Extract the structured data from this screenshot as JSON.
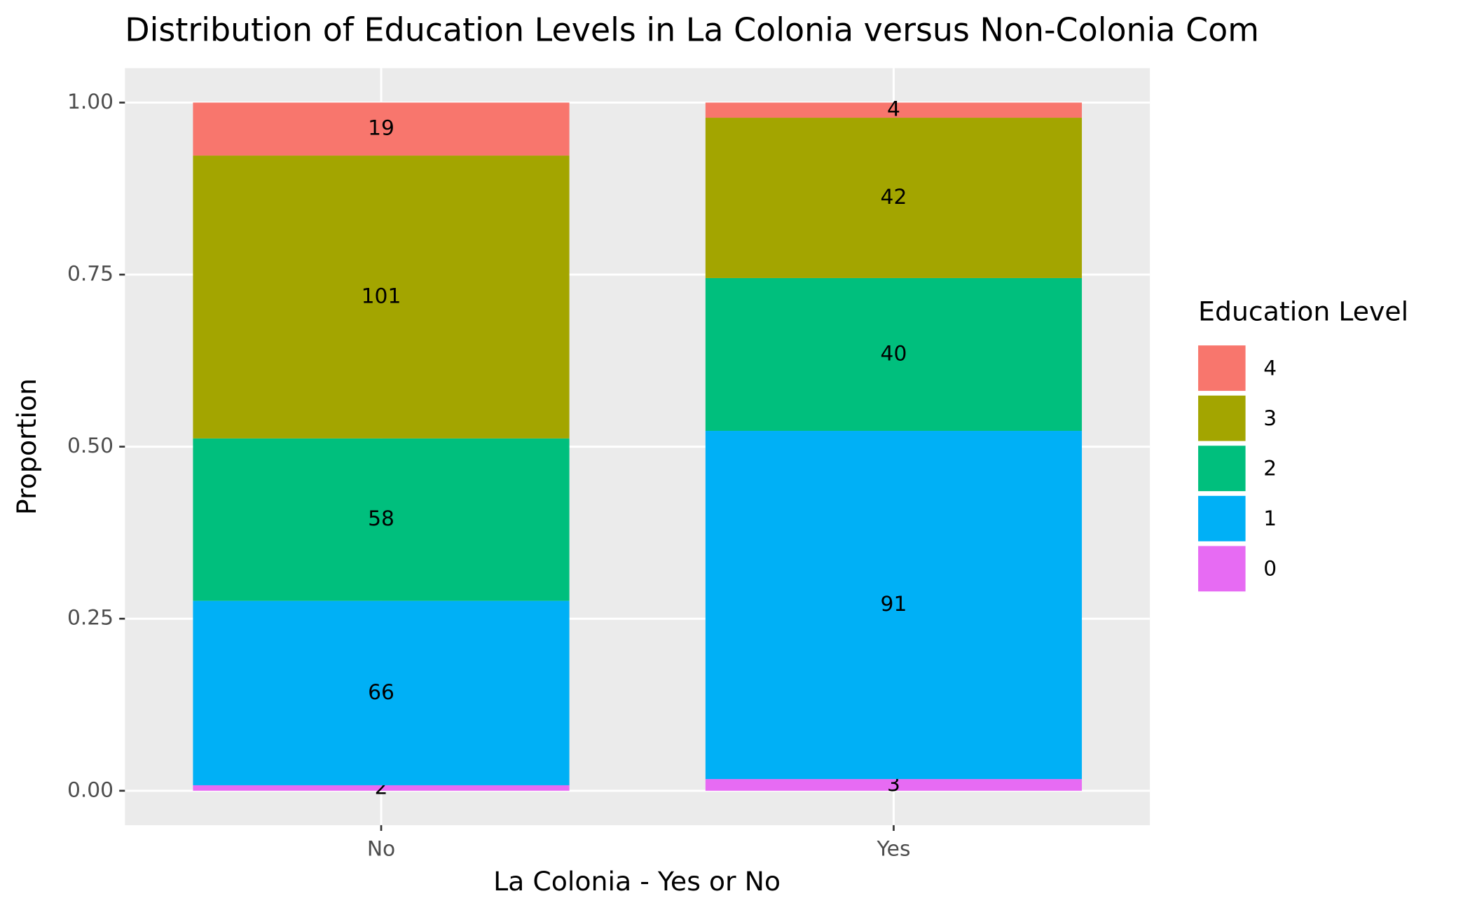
{
  "chart_data": {
    "type": "stacked-bar",
    "title": "Distribution of Education Levels in La Colonia versus Non-Colonia Com",
    "x_label": "La Colonia - Yes or No",
    "y_label": "Proportion",
    "legend_title": "Education Level",
    "categories": [
      "No",
      "Yes"
    ],
    "series": [
      {
        "name": "0",
        "color": "#E76BF3",
        "values": [
          0.008,
          0.017
        ],
        "counts": [
          2,
          3
        ]
      },
      {
        "name": "1",
        "color": "#00B0F6",
        "values": [
          0.268,
          0.506
        ],
        "counts": [
          66,
          91
        ]
      },
      {
        "name": "2",
        "color": "#00BF7D",
        "values": [
          0.236,
          0.222
        ],
        "counts": [
          58,
          40
        ]
      },
      {
        "name": "3",
        "color": "#A3A500",
        "values": [
          0.411,
          0.233
        ],
        "counts": [
          101,
          42
        ]
      },
      {
        "name": "4",
        "color": "#F8766D",
        "values": [
          0.077,
          0.022
        ],
        "counts": [
          19,
          4
        ]
      }
    ],
    "ylim": [
      -0.05,
      1.05
    ],
    "yticks": [
      {
        "value": 0,
        "label": "0.00"
      },
      {
        "value": 0.25,
        "label": "0.25"
      },
      {
        "value": 0.5,
        "label": "0.50"
      },
      {
        "value": 0.75,
        "label": "0.75"
      },
      {
        "value": 1,
        "label": "1.00"
      }
    ],
    "grid": true,
    "legend": "right"
  }
}
